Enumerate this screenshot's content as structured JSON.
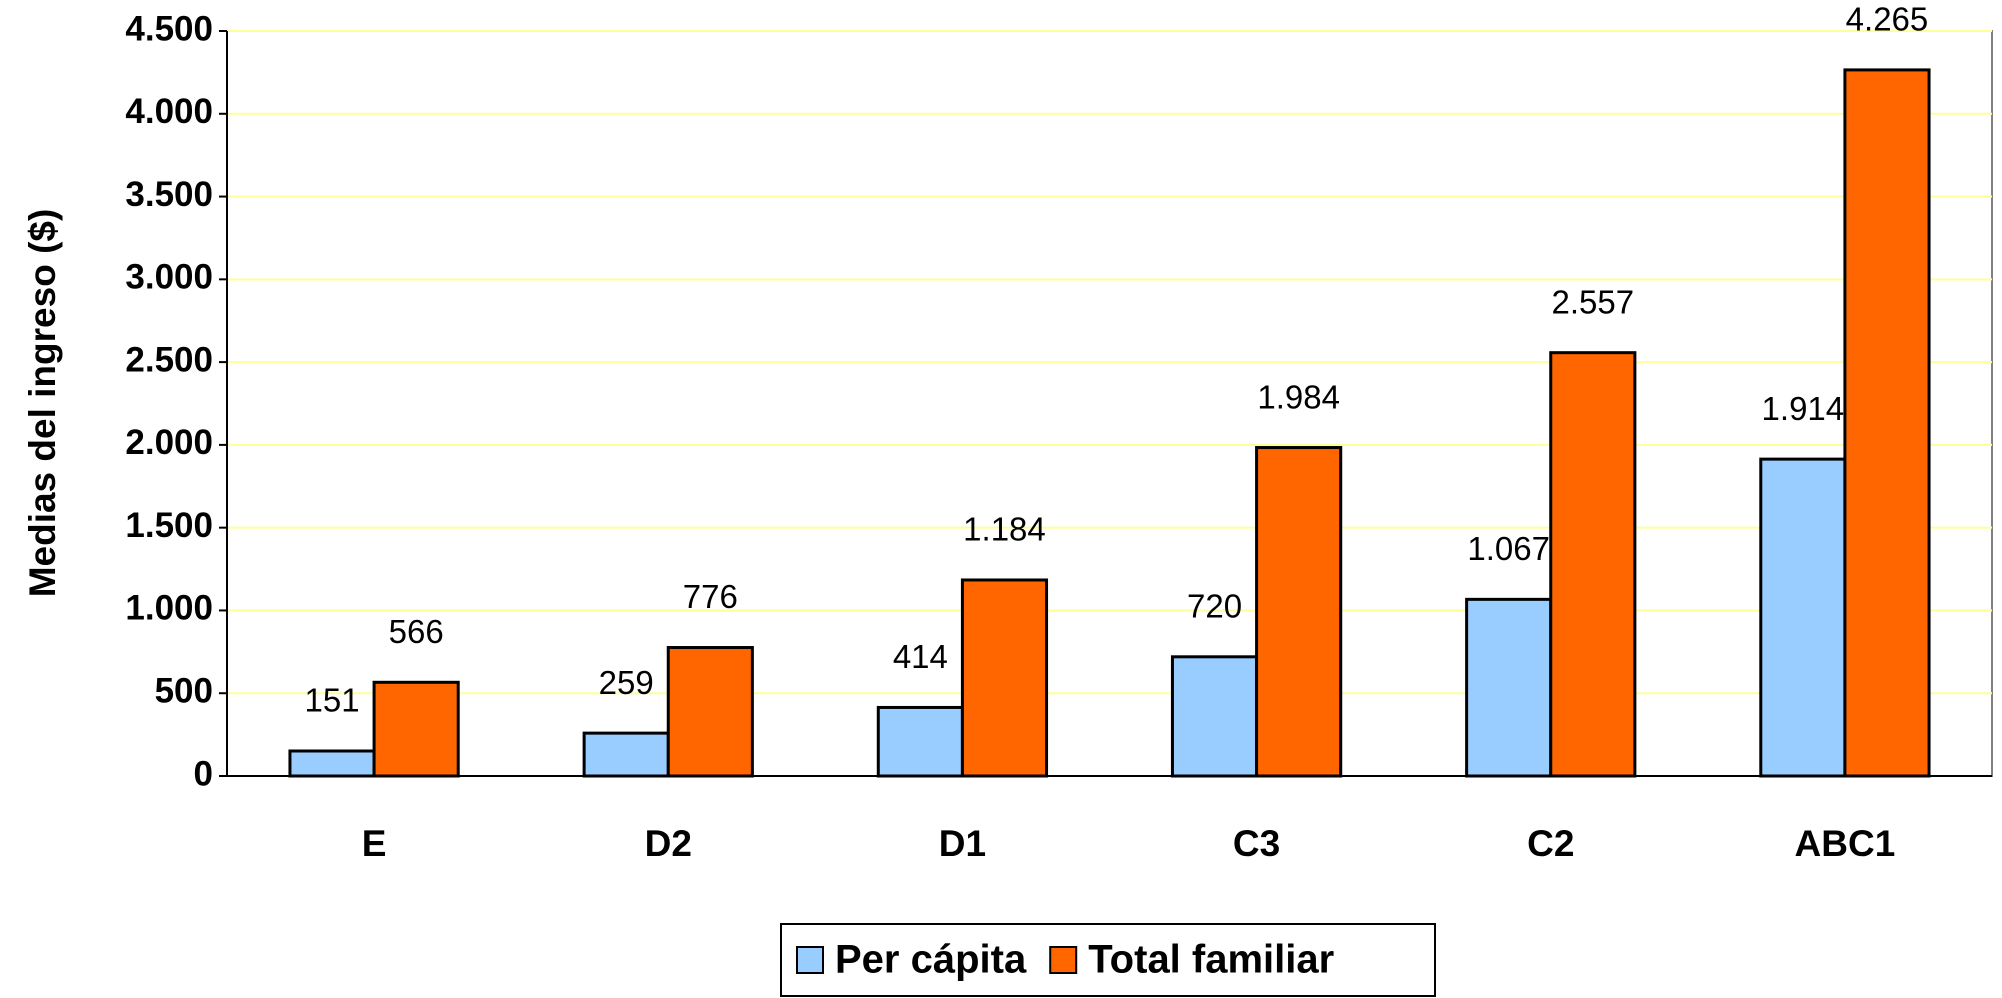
{
  "chart_data": {
    "type": "bar",
    "y_label": "Medias del ingreso ($)",
    "categories": [
      "E",
      "D2",
      "D1",
      "C3",
      "C2",
      "ABC1"
    ],
    "series": [
      {
        "name": "Per cápita",
        "color": "#99ccff",
        "values": [
          151,
          259,
          414,
          720,
          1067,
          1914
        ],
        "value_labels": [
          "151",
          "259",
          "414",
          "720",
          "1.067",
          "1.914"
        ]
      },
      {
        "name": "Total familiar",
        "color": "#ff6600",
        "values": [
          566,
          776,
          1184,
          1984,
          2557,
          4265
        ],
        "value_labels": [
          "566",
          "776",
          "1.184",
          "1.984",
          "2.557",
          "4.265"
        ]
      }
    ],
    "ylim": [
      0,
      4500
    ],
    "yticks": [
      0,
      {
        "value": 500,
        "label": "500"
      },
      {
        "value": 1000,
        "label": "1.000"
      },
      {
        "value": 1500,
        "label": "1.500"
      },
      {
        "value": 2000,
        "label": "2.000"
      },
      {
        "value": 2500,
        "label": "2.500"
      },
      {
        "value": 3000,
        "label": "3.000"
      },
      {
        "value": 3500,
        "label": "3.500"
      },
      {
        "value": 4000,
        "label": "4.000"
      },
      {
        "value": 4500,
        "label": "4.500"
      }
    ],
    "grid": true,
    "legend": "bottom"
  }
}
